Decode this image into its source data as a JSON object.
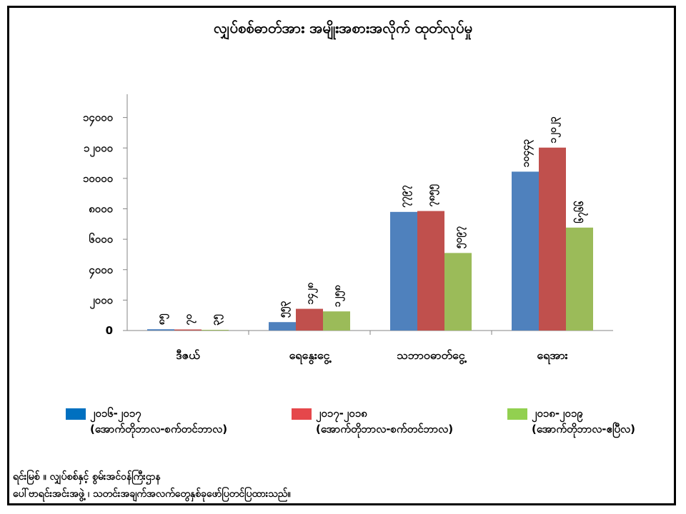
{
  "chart_data": {
    "type": "bar",
    "title": "လျှပ်စစ်ဓာတ်အား အမျိုးအစားအလိုက် ထုတ်လုပ်မှု",
    "categories": [
      "ဒီဇယ်",
      "ရေနွေးငွေ့",
      "သဘာဝဓာတ်ငွေ့",
      "ရေအား"
    ],
    "ylim": [
      0,
      16000
    ],
    "yticks": [
      0,
      2000,
      4000,
      6000,
      8000,
      10000,
      12000,
      14000
    ],
    "ytick_labels": [
      "0",
      "၂၀၀၀",
      "၄၀၀၀",
      "၆၀၀၀",
      "၈၀၀၀",
      "၁၀၀၀၀",
      "၁၂၀၀၀",
      "၁၄၀၀၀"
    ],
    "series": [
      {
        "name": "၂၀၁၆-၂၀၁၇",
        "name_note": "(အောက်တိုဘာလ-စက်တင်ဘာလ)",
        "color": "#4F81BD",
        "values": [
          85,
          553,
          7797,
          10443
        ],
        "labels": [
          "၈၅",
          "၅၅၃",
          "၇၇၉၇",
          "၁၀၄၄၃"
        ]
      },
      {
        "name": "၂၀၁၇-၂၀၁၈",
        "name_note": "(အောက်တိုဘာလ-စက်တင်ဘာလ)",
        "color": "#C0504D",
        "values": [
          70,
          1428,
          7855,
          12023
        ],
        "labels": [
          "၇၀",
          "၁၄၂၈",
          "၇၈၅၅",
          "၁၂၀၂၃"
        ]
      },
      {
        "name": "၂၀၁၈-၂၀၁၉",
        "name_note": "(အောက်တိုဘာလ-ဧပြီလ)",
        "color": "#9BBB59",
        "values": [
          35,
          1258,
          5097,
          6766
        ],
        "labels": [
          "၃၅",
          "၁၂၅၈",
          "၅၀၉၇",
          "၆၇၆၆"
        ]
      }
    ],
    "xlabel": "",
    "ylabel": "",
    "grid": false,
    "legend": "bottom"
  },
  "source": {
    "line1": "ရင်းမြစ် ။ လျှပ်စစ်နှင့် စွမ်းအင်ဝန်ကြီးဌာန",
    "line2": "ပေါ်ဗာရင်းအင်းအဖွဲ့ ၊ သတင်းအချက်အလက်တွေနှစ်ခုဖော်ပြတင်ပြထားသည်။"
  }
}
